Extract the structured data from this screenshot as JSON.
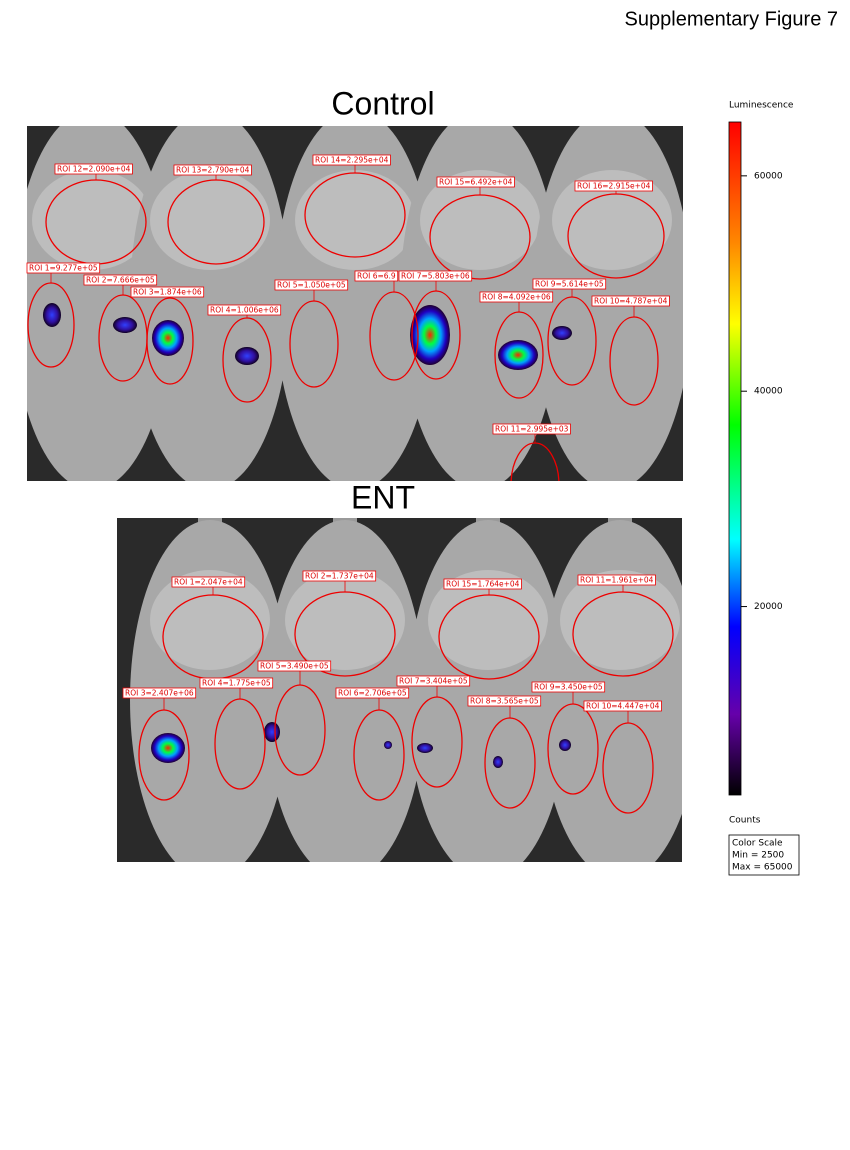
{
  "header": {
    "title": "Supplementary Figure 7"
  },
  "panels": [
    {
      "title": "Control",
      "rois": [
        "ROI 12=2.090e+04",
        "ROI 13=2.790e+04",
        "ROI 14=2.295e+04",
        "ROI 15=6.492e+04",
        "ROI 16=2.915e+04",
        "ROI 1=9.277e+05",
        "ROI 2=7.666e+05",
        "ROI 3=1.874e+06",
        "ROI 4=1.006e+06",
        "ROI 5=1.050e+05",
        "ROI 6=6.9",
        "ROI 7=5.803e+06",
        "ROI 8=4.092e+06",
        "ROI 9=5.614e+05",
        "ROI 10=4.787e+04",
        "ROI 11=2.995e+03"
      ]
    },
    {
      "title": "ENT",
      "rois": [
        "ROI 1=2.047e+04",
        "ROI 2=1.737e+04",
        "ROI 15=1.764e+04",
        "ROI 11=1.961e+04",
        "ROI 3=2.407e+06",
        "ROI 4=1.775e+05",
        "ROI 5=3.490e+05",
        "ROI 6=2.706e+05",
        "ROI 7=3.404e+05",
        "ROI 8=3.565e+05",
        "ROI 9=3.450e+05",
        "ROI 10=4.447e+04"
      ]
    }
  ],
  "colorbar": {
    "title": "Luminescence",
    "ticks": [
      60000,
      40000,
      20000
    ],
    "unit": "Counts",
    "scale": {
      "title": "Color Scale",
      "min": {
        "value": 2500,
        "label": "Min = 2500"
      },
      "max": {
        "value": 65000,
        "label": "Max = 65000"
      }
    }
  }
}
